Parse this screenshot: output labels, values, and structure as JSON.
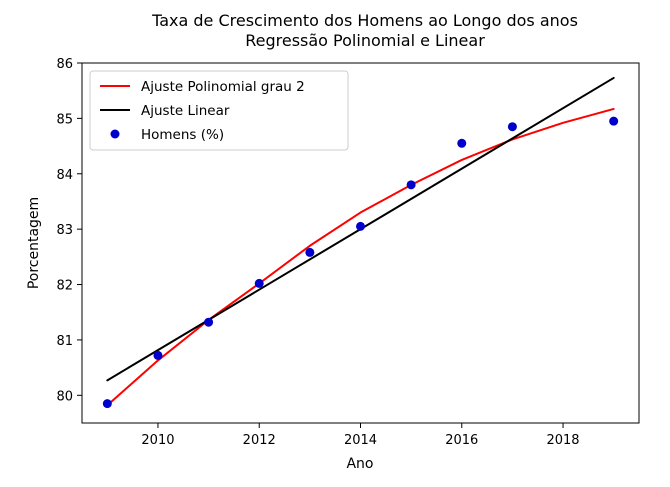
{
  "chart_data": {
    "type": "scatter",
    "title": "Taxa de Crescimento dos Homens ao Longo dos anos",
    "subtitle": "Regressão Polinomial e Linear",
    "xlabel": "Ano",
    "ylabel": "Porcentagem",
    "xlim": [
      2008.5,
      2019.5
    ],
    "ylim": [
      79.5,
      86
    ],
    "xticks": [
      2010,
      2012,
      2014,
      2016,
      2018
    ],
    "yticks": [
      80,
      81,
      82,
      83,
      84,
      85,
      86
    ],
    "grid": false,
    "legend_position": "top-left",
    "series": [
      {
        "name": "Ajuste Polinomial grau 2",
        "kind": "line",
        "color": "#ff0000",
        "x": [
          2009,
          2010,
          2011,
          2012,
          2013,
          2014,
          2015,
          2016,
          2017,
          2018,
          2019
        ],
        "y": [
          79.82,
          80.63,
          81.36,
          82.02,
          82.7,
          83.3,
          83.8,
          84.25,
          84.62,
          84.92,
          85.17
        ]
      },
      {
        "name": "Ajuste Linear",
        "kind": "line",
        "color": "#000000",
        "x": [
          2009,
          2019
        ],
        "y": [
          80.27,
          85.73
        ]
      },
      {
        "name": "Homens (%)",
        "kind": "scatter",
        "color": "#0000cc",
        "x": [
          2009,
          2010,
          2011,
          2012,
          2013,
          2014,
          2015,
          2016,
          2017,
          2019
        ],
        "y": [
          79.85,
          80.72,
          81.32,
          82.02,
          82.58,
          83.05,
          83.8,
          84.55,
          84.85,
          84.95
        ]
      }
    ]
  }
}
